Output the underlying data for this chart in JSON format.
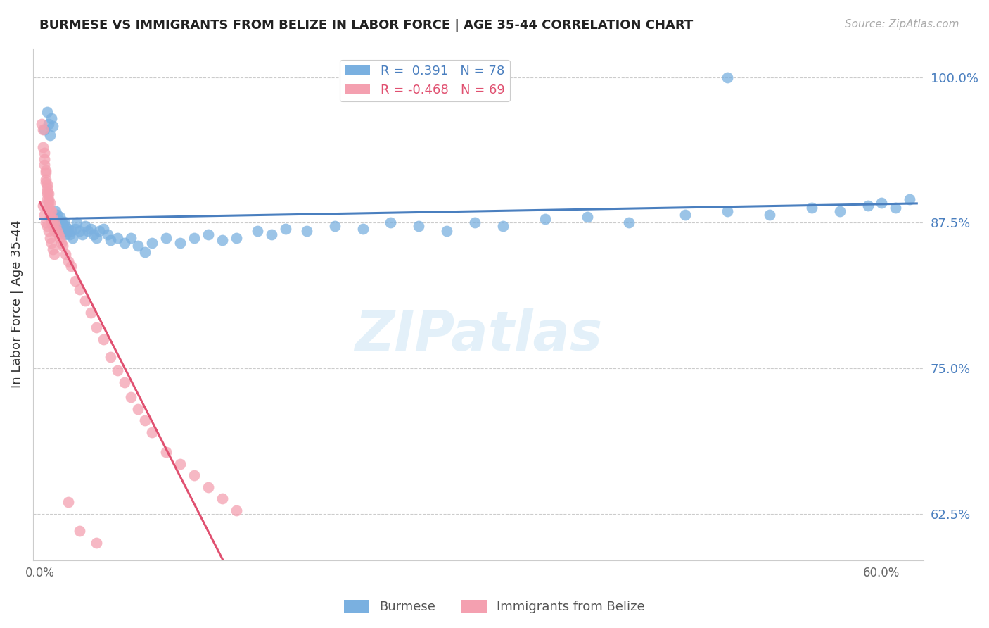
{
  "title": "BURMESE VS IMMIGRANTS FROM BELIZE IN LABOR FORCE | AGE 35-44 CORRELATION CHART",
  "source": "Source: ZipAtlas.com",
  "ylabel": "In Labor Force | Age 35-44",
  "blue_R": 0.391,
  "blue_N": 78,
  "pink_R": -0.468,
  "pink_N": 69,
  "blue_color": "#7ab0e0",
  "pink_color": "#f4a0b0",
  "blue_line_color": "#4a7fbf",
  "pink_line_color": "#e05070",
  "legend_burmese": "Burmese",
  "legend_belize": "Immigrants from Belize",
  "blue_x": [
    0.003,
    0.005,
    0.006,
    0.007,
    0.008,
    0.009,
    0.01,
    0.01,
    0.011,
    0.012,
    0.012,
    0.013,
    0.013,
    0.014,
    0.014,
    0.015,
    0.015,
    0.016,
    0.016,
    0.017,
    0.017,
    0.018,
    0.018,
    0.019,
    0.02,
    0.021,
    0.022,
    0.023,
    0.025,
    0.026,
    0.028,
    0.03,
    0.032,
    0.034,
    0.036,
    0.038,
    0.04,
    0.042,
    0.045,
    0.048,
    0.05,
    0.055,
    0.06,
    0.065,
    0.07,
    0.075,
    0.08,
    0.09,
    0.1,
    0.11,
    0.12,
    0.13,
    0.14,
    0.155,
    0.165,
    0.175,
    0.19,
    0.21,
    0.23,
    0.25,
    0.27,
    0.29,
    0.31,
    0.33,
    0.36,
    0.39,
    0.42,
    0.46,
    0.49,
    0.52,
    0.55,
    0.57,
    0.59,
    0.6,
    0.61,
    0.62,
    0.248,
    0.49
  ],
  "blue_y": [
    0.955,
    0.97,
    0.96,
    0.95,
    0.965,
    0.958,
    0.875,
    0.88,
    0.885,
    0.878,
    0.882,
    0.876,
    0.87,
    0.874,
    0.88,
    0.872,
    0.876,
    0.868,
    0.874,
    0.87,
    0.876,
    0.865,
    0.872,
    0.868,
    0.87,
    0.865,
    0.868,
    0.862,
    0.87,
    0.875,
    0.868,
    0.865,
    0.872,
    0.868,
    0.87,
    0.865,
    0.862,
    0.868,
    0.87,
    0.865,
    0.86,
    0.862,
    0.858,
    0.862,
    0.855,
    0.85,
    0.858,
    0.862,
    0.858,
    0.862,
    0.865,
    0.86,
    0.862,
    0.868,
    0.865,
    0.87,
    0.868,
    0.872,
    0.87,
    0.875,
    0.872,
    0.868,
    0.875,
    0.872,
    0.878,
    0.88,
    0.875,
    0.882,
    0.885,
    0.882,
    0.888,
    0.885,
    0.89,
    0.892,
    0.888,
    0.895,
    1.0,
    1.0
  ],
  "pink_x": [
    0.001,
    0.002,
    0.002,
    0.003,
    0.003,
    0.003,
    0.004,
    0.004,
    0.004,
    0.004,
    0.005,
    0.005,
    0.005,
    0.005,
    0.005,
    0.006,
    0.006,
    0.006,
    0.006,
    0.007,
    0.007,
    0.007,
    0.008,
    0.008,
    0.008,
    0.009,
    0.009,
    0.01,
    0.01,
    0.011,
    0.012,
    0.013,
    0.014,
    0.015,
    0.016,
    0.018,
    0.02,
    0.022,
    0.025,
    0.028,
    0.032,
    0.036,
    0.04,
    0.045,
    0.05,
    0.055,
    0.06,
    0.065,
    0.07,
    0.075,
    0.08,
    0.09,
    0.1,
    0.11,
    0.12,
    0.13,
    0.14,
    0.002,
    0.003,
    0.004,
    0.005,
    0.006,
    0.007,
    0.008,
    0.009,
    0.01,
    0.02,
    0.028,
    0.04
  ],
  "pink_y": [
    0.96,
    0.955,
    0.94,
    0.935,
    0.925,
    0.93,
    0.918,
    0.912,
    0.92,
    0.91,
    0.905,
    0.9,
    0.908,
    0.895,
    0.902,
    0.895,
    0.888,
    0.9,
    0.892,
    0.885,
    0.892,
    0.88,
    0.878,
    0.885,
    0.875,
    0.878,
    0.872,
    0.875,
    0.868,
    0.872,
    0.868,
    0.865,
    0.862,
    0.858,
    0.855,
    0.848,
    0.842,
    0.838,
    0.825,
    0.818,
    0.808,
    0.798,
    0.785,
    0.775,
    0.76,
    0.748,
    0.738,
    0.725,
    0.715,
    0.705,
    0.695,
    0.678,
    0.668,
    0.658,
    0.648,
    0.638,
    0.628,
    0.89,
    0.882,
    0.875,
    0.872,
    0.868,
    0.862,
    0.858,
    0.852,
    0.848,
    0.635,
    0.61,
    0.6
  ],
  "xlim": [
    -0.005,
    0.63
  ],
  "ylim": [
    0.585,
    1.025
  ],
  "yticks": [
    1.0,
    0.875,
    0.75,
    0.625
  ],
  "ytick_labels": [
    "100.0%",
    "87.5%",
    "75.0%",
    "62.5%"
  ],
  "xtick_labels": [
    "0.0%",
    "60.0%"
  ],
  "xtick_pos": [
    0.0,
    0.6
  ]
}
